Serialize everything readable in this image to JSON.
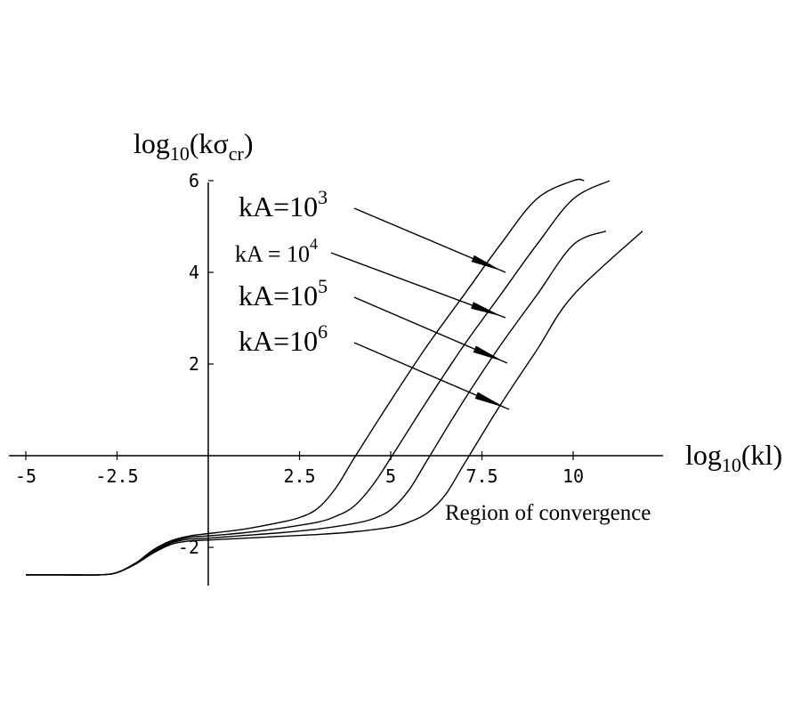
{
  "chart_data": {
    "type": "line",
    "xlabel": "log10(kl)",
    "ylabel": "log10(kσcr)",
    "xlim": [
      -5.1,
      12.8
    ],
    "ylim": [
      -2.9,
      6.1
    ],
    "x_ticks": [
      -5,
      -2.5,
      2.5,
      5,
      7.5,
      10
    ],
    "x_tick_labels": [
      "-5",
      "-2.5",
      "2.5",
      "5",
      "7.5",
      "10"
    ],
    "y_ticks": [
      -2,
      2,
      4,
      6
    ],
    "y_tick_labels": [
      "-2",
      "2",
      "4",
      "6"
    ],
    "grid": false,
    "legend": "none",
    "annotation": "Region of convergence",
    "series": [
      {
        "name": "kA=10^3",
        "label_base": "kA=10",
        "label_exp": "3",
        "x": [
          -5,
          -4,
          -3,
          -2.5,
          -2,
          -1.5,
          -1,
          -0.5,
          0,
          1,
          2,
          2.5,
          3,
          3.5,
          4,
          5,
          6,
          7,
          8,
          9,
          10,
          10.3
        ],
        "y": [
          -2.6,
          -2.6,
          -2.6,
          -2.55,
          -2.35,
          -2.05,
          -1.85,
          -1.75,
          -1.7,
          -1.6,
          -1.45,
          -1.35,
          -1.15,
          -0.7,
          -0.05,
          1.2,
          2.4,
          3.5,
          4.6,
          5.6,
          6.0,
          6.0
        ]
      },
      {
        "name": "kA=10^4",
        "label_base": "kA = 10",
        "label_exp": "4",
        "x": [
          -5,
          -4,
          -3,
          -2.5,
          -2,
          -1.5,
          -1,
          -0.5,
          0,
          1,
          2,
          3,
          3.5,
          4,
          4.5,
          5,
          6,
          7,
          8,
          9,
          10,
          11
        ],
        "y": [
          -2.6,
          -2.6,
          -2.6,
          -2.55,
          -2.35,
          -2.08,
          -1.88,
          -1.78,
          -1.75,
          -1.68,
          -1.58,
          -1.45,
          -1.32,
          -1.1,
          -0.65,
          -0.05,
          1.2,
          2.4,
          3.5,
          4.6,
          5.6,
          6.0
        ]
      },
      {
        "name": "kA=10^5",
        "label_base": "kA=10",
        "label_exp": "5",
        "x": [
          -5,
          -4,
          -3,
          -2.5,
          -2,
          -1.5,
          -1,
          -0.5,
          0,
          1,
          2,
          3,
          4,
          4.5,
          5,
          5.5,
          6,
          7,
          8,
          9,
          10,
          10.9
        ],
        "y": [
          -2.6,
          -2.6,
          -2.6,
          -2.55,
          -2.35,
          -2.1,
          -1.9,
          -1.82,
          -1.8,
          -1.74,
          -1.68,
          -1.6,
          -1.48,
          -1.38,
          -1.18,
          -0.75,
          -0.1,
          1.2,
          2.4,
          3.5,
          4.6,
          4.9
        ]
      },
      {
        "name": "kA=10^6",
        "label_base": "kA=10",
        "label_exp": "6",
        "x": [
          -5,
          -4,
          -3,
          -2.5,
          -2,
          -1.5,
          -1,
          -0.5,
          0,
          1,
          2,
          3,
          4,
          5,
          5.5,
          6,
          6.5,
          7,
          8,
          9,
          10,
          11.9
        ],
        "y": [
          -2.6,
          -2.6,
          -2.6,
          -2.55,
          -2.37,
          -2.12,
          -1.93,
          -1.86,
          -1.84,
          -1.8,
          -1.76,
          -1.72,
          -1.66,
          -1.56,
          -1.45,
          -1.25,
          -0.85,
          -0.2,
          1.1,
          2.3,
          3.5,
          4.9
        ]
      }
    ]
  }
}
